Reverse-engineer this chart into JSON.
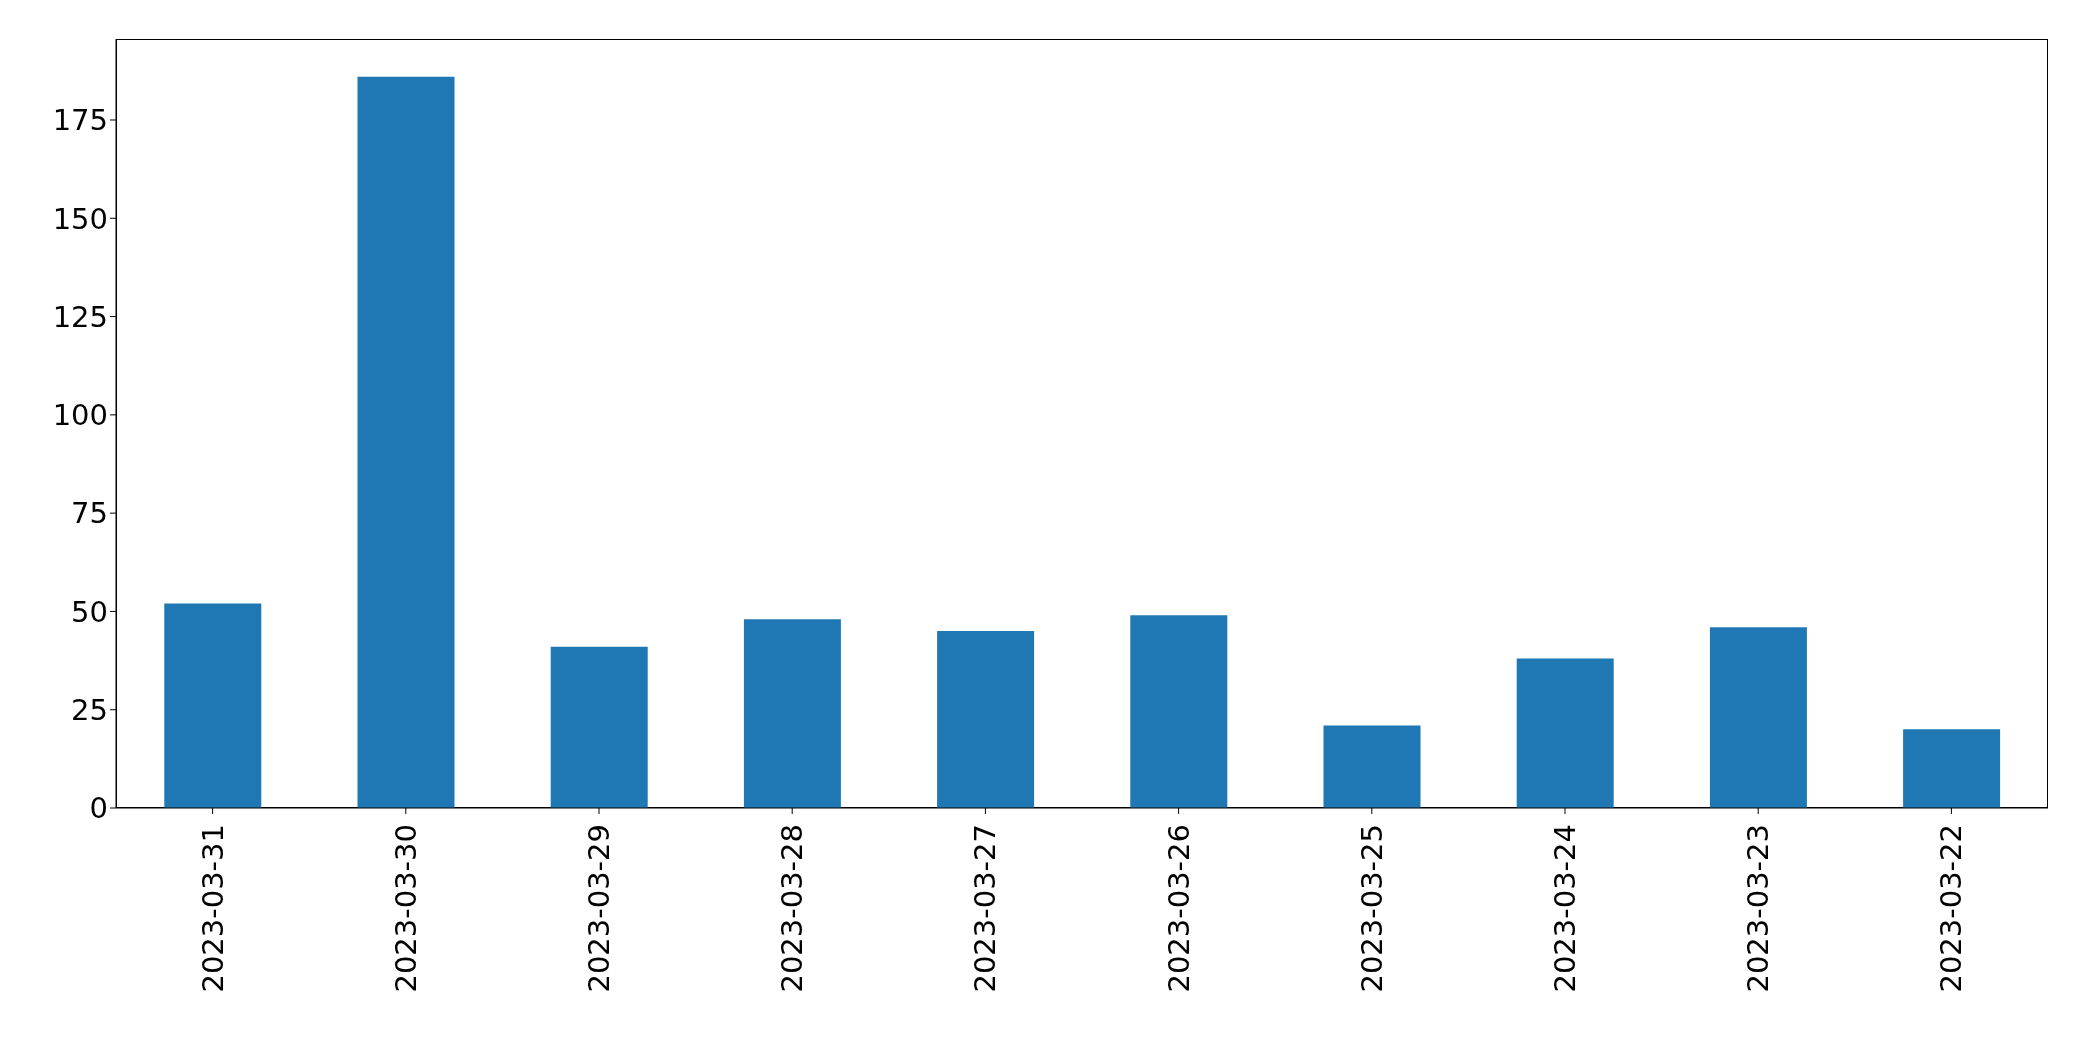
{
  "chart_data": {
    "type": "bar",
    "categories": [
      "2023-03-31",
      "2023-03-30",
      "2023-03-29",
      "2023-03-28",
      "2023-03-27",
      "2023-03-26",
      "2023-03-25",
      "2023-03-24",
      "2023-03-23",
      "2023-03-22"
    ],
    "values": [
      52,
      186,
      41,
      48,
      45,
      49,
      21,
      38,
      46,
      20
    ],
    "color": "#1f77b4",
    "ylim": [
      0,
      195.6
    ],
    "yticks": [
      0,
      25,
      50,
      75,
      100,
      125,
      150,
      175
    ]
  }
}
